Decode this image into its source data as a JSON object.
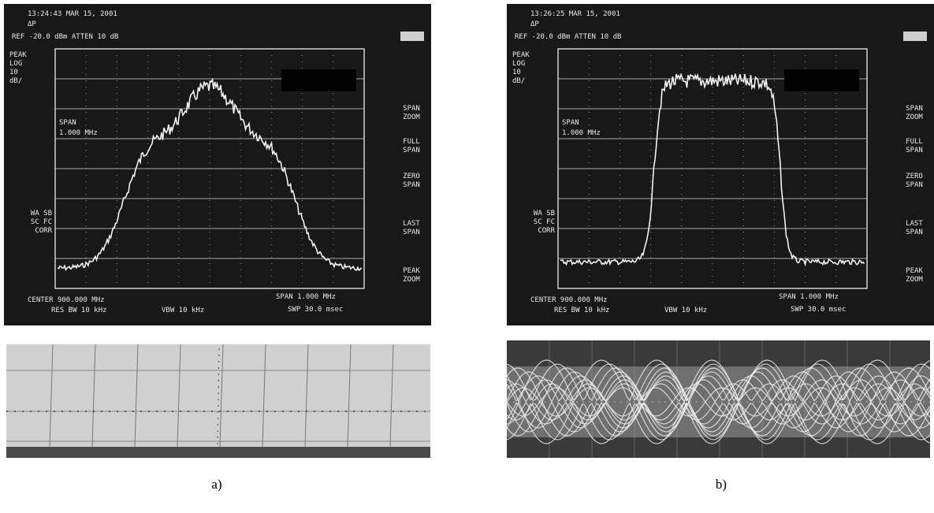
{
  "panels": [
    {
      "caption": "a)",
      "screen": {
        "timestamp": "13:24:43 MAR 15, 2001",
        "marker": "ΔP",
        "ref": "REF -20.0 dBm  ATTEN 10 dB",
        "left_labels": [
          "PEAK",
          "LOG",
          "10",
          "dB/"
        ],
        "span_label": [
          "SPAN",
          "1.000 MHz"
        ],
        "corr_labels": [
          "WA SB",
          "SC FC",
          "CORR"
        ],
        "center": "CENTER 900.000 MHz",
        "res_bw": "RES BW 10 kHz",
        "vbw": "VBW 10 kHz",
        "span": "SPAN 1.000 MHz",
        "sweep": "SWP 30.0 msec",
        "softkeys": [
          [
            "SPAN",
            "ZOOM"
          ],
          [
            "FULL",
            "SPAN"
          ],
          [
            "ZERO",
            "SPAN"
          ],
          [
            "LAST",
            "SPAN"
          ],
          [
            "PEAK",
            "ZOOM"
          ]
        ]
      }
    },
    {
      "caption": "b)",
      "screen": {
        "timestamp": "13:26:25 MAR 15, 2001",
        "marker": "ΔP",
        "ref": "REF -20.0 dBm  ATTEN 10 dB",
        "left_labels": [
          "PEAK",
          "LOG",
          "10",
          "dB/"
        ],
        "span_label": [
          "SPAN",
          "1.000 MHz"
        ],
        "corr_labels": [
          "WA SB",
          "SC FC",
          "CORR"
        ],
        "center": "CENTER 900.000 MHz",
        "res_bw": "RES BW 10 kHz",
        "vbw": "VBW 10 kHz",
        "span": "SPAN 1.000 MHz",
        "sweep": "SWP 30.0 msec",
        "softkeys": [
          [
            "SPAN",
            "ZOOM"
          ],
          [
            "FULL",
            "SPAN"
          ],
          [
            "ZERO",
            "SPAN"
          ],
          [
            "LAST",
            "SPAN"
          ],
          [
            "PEAK",
            "ZOOM"
          ]
        ]
      }
    }
  ]
}
